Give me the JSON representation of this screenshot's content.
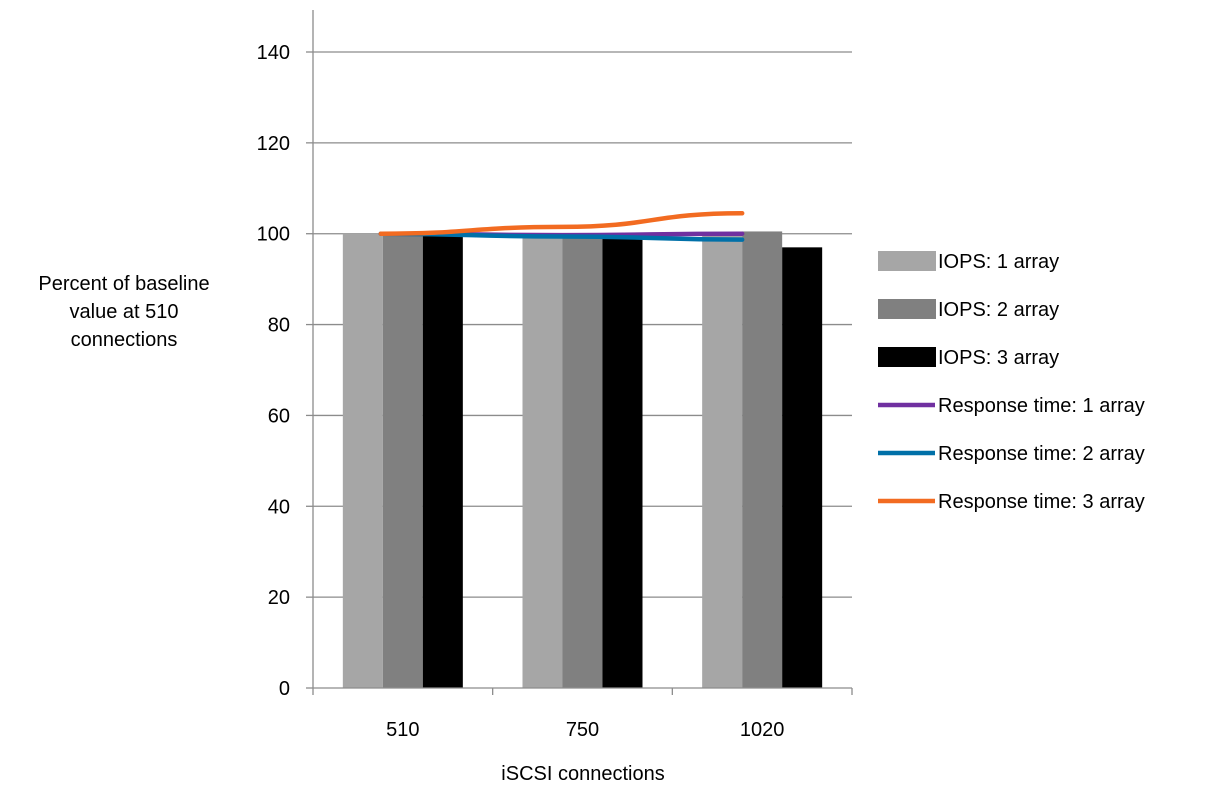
{
  "chart_data": {
    "type": "bar",
    "title": "",
    "xlabel": "iSCSI connections",
    "ylabel_lines": [
      "Percent of baseline",
      "value at 510",
      "connections"
    ],
    "categories": [
      "510",
      "750",
      "1020"
    ],
    "ylim": [
      0,
      140
    ],
    "yticks": [
      "0",
      "20",
      "40",
      "60",
      "80",
      "100",
      "120",
      "140"
    ],
    "grid": true,
    "legend_position": "right",
    "bar_series": [
      {
        "name": "IOPS: 1 array",
        "color": "#a6a6a6",
        "values": [
          100,
          100,
          100
        ]
      },
      {
        "name": "IOPS: 2 array",
        "color": "#808080",
        "values": [
          100,
          100,
          100.5
        ]
      },
      {
        "name": "IOPS: 3 array",
        "color": "#000000",
        "values": [
          99.5,
          99,
          97
        ]
      }
    ],
    "line_series": [
      {
        "name": "Response time: 1 array",
        "color": "#7030a0",
        "values": [
          100,
          99.7,
          100
        ]
      },
      {
        "name": "Response time: 2 array",
        "color": "#0070a8",
        "values": [
          100,
          99.4,
          98.7
        ]
      },
      {
        "name": "Response time: 3 array",
        "color": "#f26b21",
        "values": [
          100,
          101.5,
          104.5
        ]
      }
    ]
  }
}
